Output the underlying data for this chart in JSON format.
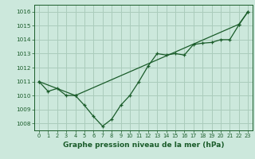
{
  "title": "Graphe pression niveau de la mer (hPa)",
  "background_color": "#cce8dc",
  "grid_color": "#aaccbc",
  "line_color": "#1a5c2a",
  "xlim": [
    -0.5,
    23.5
  ],
  "ylim": [
    1007.5,
    1016.5
  ],
  "yticks": [
    1008,
    1009,
    1010,
    1011,
    1012,
    1013,
    1014,
    1015,
    1016
  ],
  "xticks": [
    0,
    1,
    2,
    3,
    4,
    5,
    6,
    7,
    8,
    9,
    10,
    11,
    12,
    13,
    14,
    15,
    16,
    17,
    18,
    19,
    20,
    21,
    22,
    23
  ],
  "series1_x": [
    0,
    1,
    2,
    3,
    4,
    5,
    6,
    7,
    8,
    9,
    10,
    11,
    12,
    13,
    14,
    15,
    16,
    17,
    18,
    19,
    20,
    21,
    22,
    23
  ],
  "series1_y": [
    1011.0,
    1010.3,
    1010.5,
    1010.0,
    1010.0,
    1009.3,
    1008.5,
    1007.8,
    1008.3,
    1009.3,
    1010.0,
    1011.0,
    1012.1,
    1013.0,
    1012.9,
    1013.0,
    1012.9,
    1013.65,
    1013.75,
    1013.8,
    1014.0,
    1014.0,
    1015.05,
    1016.0
  ],
  "series2_x": [
    0,
    4,
    22,
    23
  ],
  "series2_y": [
    1011.0,
    1010.0,
    1015.1,
    1016.0
  ]
}
